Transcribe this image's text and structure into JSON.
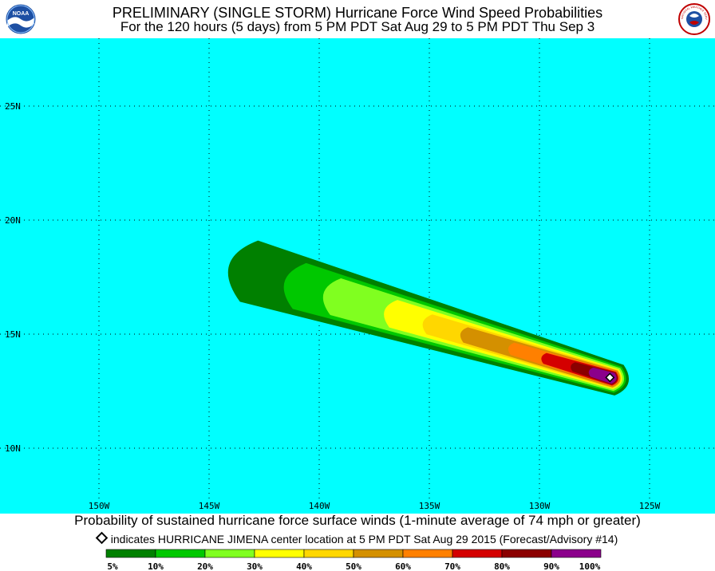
{
  "header": {
    "title": "PRELIMINARY (SINGLE STORM) Hurricane Force Wind Speed Probabilities",
    "subtitle": "For the 120 hours (5 days) from 5 PM PDT Sat Aug 29 to 5 PM PDT Thu Sep 3",
    "left_logo": "noaa-logo",
    "right_logo": "nws-logo",
    "right_logo_text": "NATIONAL WEATHER SERVICE"
  },
  "map": {
    "background_color": "#00ffff",
    "lat_labels": [
      "25N",
      "20N",
      "15N",
      "10N"
    ],
    "lon_labels": [
      "150W",
      "145W",
      "140W",
      "135W",
      "130W",
      "125W"
    ],
    "grid": "dotted",
    "storm_center": {
      "name": "HURRICANE JIMENA",
      "lat": 13.1,
      "lon": -126.8
    }
  },
  "caption": "Probability of sustained hurricane force surface winds (1-minute average of 74 mph or greater)",
  "marker_note": "indicates HURRICANE JIMENA center location at 5 PM PDT Sat Aug 29 2015 (Forecast/Advisory #14)",
  "legend": {
    "bins": [
      {
        "label": "5%",
        "color": "#008000"
      },
      {
        "label": "10%",
        "color": "#00c800"
      },
      {
        "label": "20%",
        "color": "#80ff20"
      },
      {
        "label": "30%",
        "color": "#ffff00"
      },
      {
        "label": "40%",
        "color": "#ffd700"
      },
      {
        "label": "50%",
        "color": "#d49000"
      },
      {
        "label": "60%",
        "color": "#ff8000"
      },
      {
        "label": "70%",
        "color": "#d40000"
      },
      {
        "label": "80%",
        "color": "#8b0000"
      },
      {
        "label": "90%",
        "color": "#8b008b"
      }
    ],
    "end_label": "100%"
  }
}
